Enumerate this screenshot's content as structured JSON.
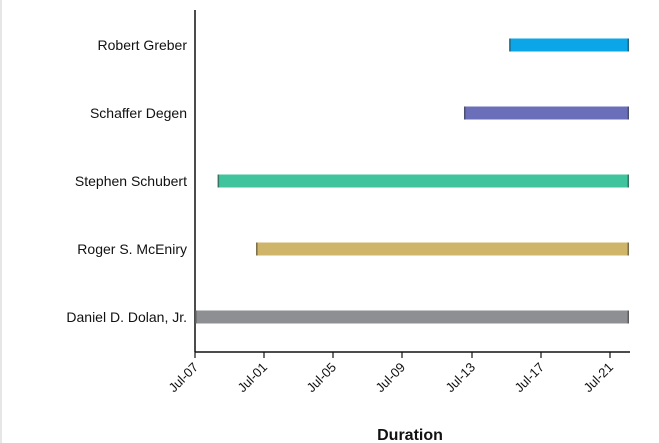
{
  "chart_data": {
    "type": "bar",
    "orientation": "horizontal",
    "xlabel": "Duration",
    "ylabel": "",
    "x_ticks": [
      "Jul-07",
      "Jul-01",
      "Jul-05",
      "Jul-09",
      "Jul-13",
      "Jul-17",
      "Jul-21"
    ],
    "x_domain": [
      0,
      9.6
    ],
    "grid": false,
    "series": [
      {
        "category": "Robert Greber",
        "start": 6.95,
        "end": 9.6,
        "color": "#0aa6e8"
      },
      {
        "category": "Schaffer Degen",
        "start": 5.95,
        "end": 9.6,
        "color": "#6b6fba"
      },
      {
        "category": "Stephen Schubert",
        "start": 0.5,
        "end": 9.6,
        "color": "#40c49d"
      },
      {
        "category": "Roger S. McEniry",
        "start": 1.35,
        "end": 9.6,
        "color": "#cfb56a"
      },
      {
        "category": "Daniel D. Dolan, Jr.",
        "start": 0,
        "end": 9.6,
        "color": "#8e8f93"
      }
    ]
  }
}
